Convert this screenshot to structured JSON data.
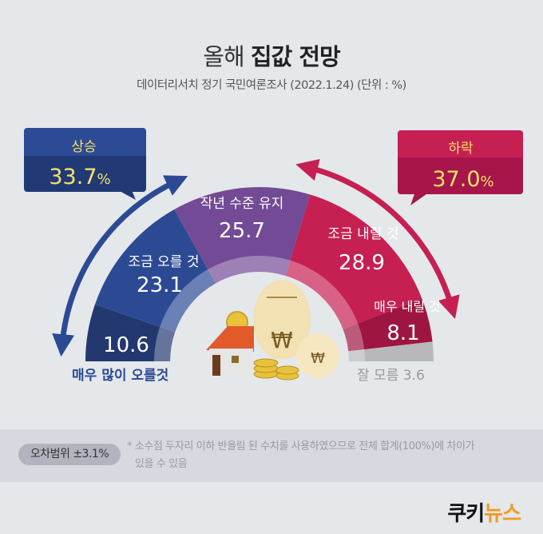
{
  "header": {
    "title_light": "올해",
    "title_bold": "집값 전망",
    "subtitle": "데이터리서치 정기 국민여론조사 (2022.1.24)  (단위 : %)"
  },
  "callouts": {
    "up": {
      "label": "상승",
      "value": "33.7",
      "unit": "%",
      "color": "#2d4a94"
    },
    "down": {
      "label": "하락",
      "value": "37.0",
      "unit": "%",
      "color": "#c61f52"
    }
  },
  "chart_data": {
    "type": "pie",
    "variant": "semi-donut",
    "categories": [
      "매우 많이 오를것",
      "조금 오를 것",
      "작년 수준 유지",
      "조금 내릴 것",
      "매우 내릴 것",
      "잘 모름"
    ],
    "values": [
      10.6,
      23.1,
      25.7,
      28.9,
      8.1,
      3.6
    ],
    "value_labels": [
      "10.6",
      "23.1",
      "25.7",
      "28.9",
      "8.1",
      "3.6"
    ],
    "colors": [
      "#23386f",
      "#2c4a94",
      "#734a95",
      "#c61f52",
      "#9e1541",
      "#b8b8bc"
    ],
    "unit": "%"
  },
  "footer": {
    "margin_of_error": "오차범위 ±3.1%",
    "note_line1": "* 소수점 두자리 이하 반올림 된 수치를 사용하였으므로 전체 합계(100%)에 차이가",
    "note_line2": "있을 수 있음"
  },
  "logo": {
    "part1": "쿠키",
    "part2": "뉴스"
  }
}
